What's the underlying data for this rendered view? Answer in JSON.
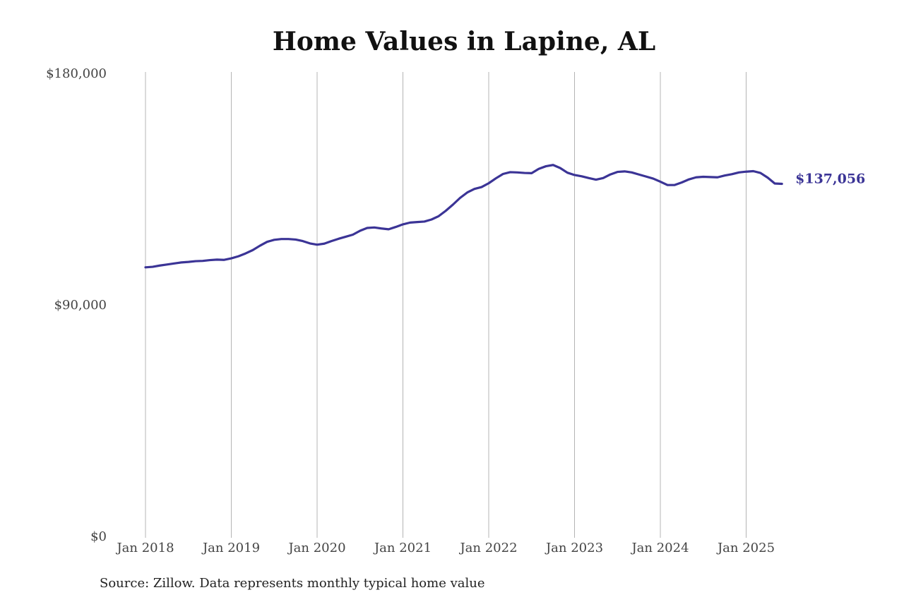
{
  "chart_data": {
    "type": "line",
    "title": "Home Values in Lapine, AL",
    "xlabel": "",
    "ylabel": "",
    "ylim": [
      0,
      180000
    ],
    "xlim": [
      "2018-01",
      "2025-06"
    ],
    "y_ticks": [
      {
        "value": 0,
        "label": "$0"
      },
      {
        "value": 90000,
        "label": "$90,000"
      },
      {
        "value": 180000,
        "label": "$180,000"
      }
    ],
    "x_ticks": [
      {
        "value": "2018-01",
        "label": "Jan 2018"
      },
      {
        "value": "2019-01",
        "label": "Jan 2019"
      },
      {
        "value": "2020-01",
        "label": "Jan 2020"
      },
      {
        "value": "2021-01",
        "label": "Jan 2021"
      },
      {
        "value": "2022-01",
        "label": "Jan 2022"
      },
      {
        "value": "2023-01",
        "label": "Jan 2023"
      },
      {
        "value": "2024-01",
        "label": "Jan 2024"
      },
      {
        "value": "2025-01",
        "label": "Jan 2025"
      }
    ],
    "grid": {
      "vertical": true,
      "horizontal": false
    },
    "line_color": "#3b3496",
    "end_label": "$137,056",
    "series": [
      {
        "x": [
          "2018-01",
          "2018-02",
          "2018-03",
          "2018-04",
          "2018-05",
          "2018-06",
          "2018-07",
          "2018-08",
          "2018-09",
          "2018-10",
          "2018-11",
          "2018-12",
          "2019-01",
          "2019-02",
          "2019-03",
          "2019-04",
          "2019-05",
          "2019-06",
          "2019-07",
          "2019-08",
          "2019-09",
          "2019-10",
          "2019-11",
          "2019-12",
          "2020-01",
          "2020-02",
          "2020-03",
          "2020-04",
          "2020-05",
          "2020-06",
          "2020-07",
          "2020-08",
          "2020-09",
          "2020-10",
          "2020-11",
          "2020-12",
          "2021-01",
          "2021-02",
          "2021-03",
          "2021-04",
          "2021-05",
          "2021-06",
          "2021-07",
          "2021-08",
          "2021-09",
          "2021-10",
          "2021-11",
          "2021-12",
          "2022-01",
          "2022-02",
          "2022-03",
          "2022-04",
          "2022-05",
          "2022-06",
          "2022-07",
          "2022-08",
          "2022-09",
          "2022-10",
          "2022-11",
          "2022-12",
          "2023-01",
          "2023-02",
          "2023-03",
          "2023-04",
          "2023-05",
          "2023-06",
          "2023-07",
          "2023-08",
          "2023-09",
          "2023-10",
          "2023-11",
          "2023-12",
          "2024-01",
          "2024-02",
          "2024-03",
          "2024-04",
          "2024-05",
          "2024-06",
          "2024-07",
          "2024-08",
          "2024-09",
          "2024-10",
          "2024-11",
          "2024-12",
          "2025-01",
          "2025-02",
          "2025-03",
          "2025-04",
          "2025-05",
          "2025-06"
        ],
        "values": [
          104600,
          104800,
          105300,
          105700,
          106100,
          106500,
          106700,
          107000,
          107100,
          107400,
          107600,
          107500,
          108100,
          108900,
          110000,
          111300,
          113000,
          114500,
          115300,
          115600,
          115600,
          115400,
          114800,
          113900,
          113400,
          113800,
          114800,
          115700,
          116500,
          117300,
          118800,
          119900,
          120100,
          119700,
          119400,
          120300,
          121300,
          122000,
          122200,
          122400,
          123200,
          124500,
          126600,
          129000,
          131600,
          133700,
          135100,
          135800,
          137300,
          139200,
          140900,
          141600,
          141500,
          141300,
          141200,
          142900,
          143900,
          144400,
          143200,
          141400,
          140500,
          140000,
          139300,
          138700,
          139300,
          140700,
          141700,
          141900,
          141500,
          140700,
          139900,
          139100,
          137900,
          136600,
          136600,
          137600,
          138800,
          139600,
          139800,
          139700,
          139600,
          140300,
          140800,
          141500,
          141800,
          142000,
          141300,
          139500,
          137200,
          137056
        ]
      }
    ]
  },
  "source_note": "Source: Zillow. Data represents monthly typical home value"
}
